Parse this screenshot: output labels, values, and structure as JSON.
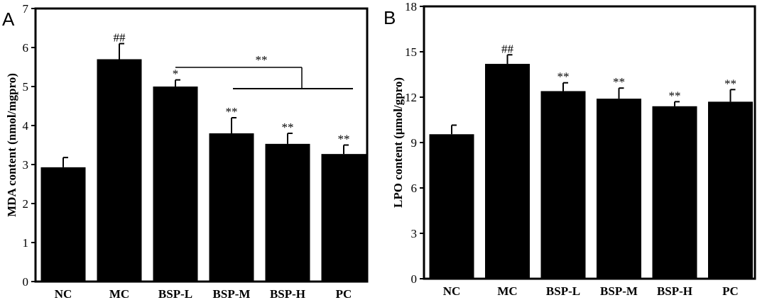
{
  "chart_data": [
    {
      "type": "bar",
      "panel": "A",
      "categories": [
        "NC",
        "MC",
        "BSP-L",
        "BSP-M",
        "BSP-H",
        "PC"
      ],
      "values": [
        2.93,
        5.7,
        5.0,
        3.8,
        3.53,
        3.27
      ],
      "errors": [
        0.25,
        0.4,
        0.17,
        0.4,
        0.27,
        0.23
      ],
      "annotations": [
        "",
        "##",
        "*",
        "**",
        "**",
        "**"
      ],
      "comparison_label": "**",
      "ylabel": "MDA content (nmol/mgpro)",
      "ylim": [
        0,
        7
      ],
      "yticks": [
        0,
        1,
        2,
        3,
        4,
        5,
        6,
        7
      ],
      "bar_color": "#000000"
    },
    {
      "type": "bar",
      "panel": "B",
      "categories": [
        "NC",
        "MC",
        "BSP-L",
        "BSP-M",
        "BSP-H",
        "PC"
      ],
      "values": [
        9.55,
        14.2,
        12.4,
        11.9,
        11.4,
        11.7
      ],
      "errors": [
        0.6,
        0.6,
        0.55,
        0.7,
        0.3,
        0.8
      ],
      "annotations": [
        "",
        "##",
        "**",
        "**",
        "**",
        "**"
      ],
      "ylabel": "LPO content (μmol/gpro)",
      "ylim": [
        0,
        18
      ],
      "yticks": [
        0,
        3,
        6,
        9,
        12,
        15,
        18
      ],
      "bar_color": "#000000"
    }
  ]
}
